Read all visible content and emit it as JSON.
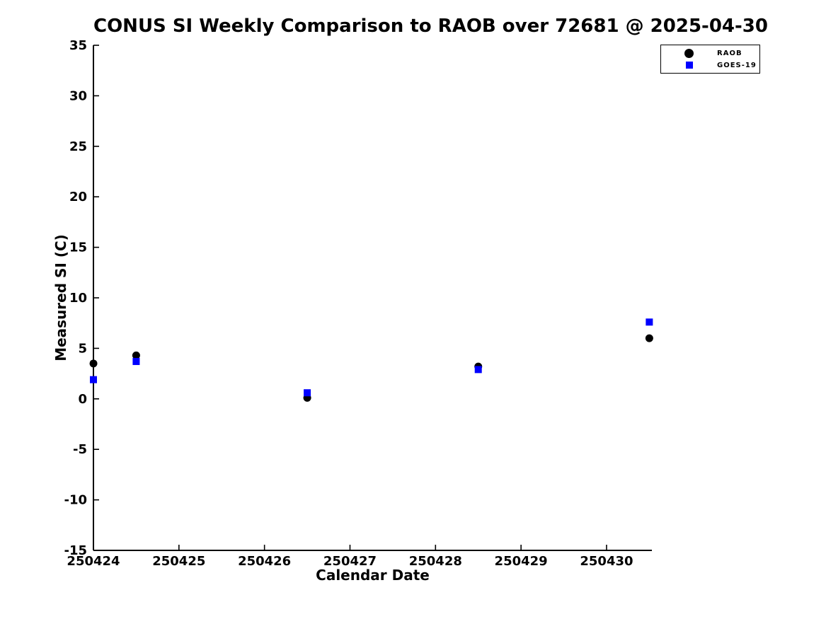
{
  "figure": {
    "background_color": "#ffffff",
    "text_color": "#000000"
  },
  "chart_data": {
    "type": "scatter",
    "title": "CONUS SI Weekly Comparison to RAOB over 72681 @ 2025-04-30",
    "xlabel": "Calendar Date",
    "ylabel": "Measured SI (C)",
    "xlim": [
      250424,
      250430.53
    ],
    "ylim": [
      -15,
      35
    ],
    "xticks": [
      250424,
      250425,
      250426,
      250427,
      250428,
      250429,
      250430
    ],
    "yticks": [
      -15,
      -10,
      -5,
      0,
      5,
      10,
      15,
      20,
      25,
      30,
      35
    ],
    "grid": false,
    "legend_position": "upper-right-outside",
    "series": [
      {
        "name": "RAOB",
        "marker": "circle",
        "color": "#000000",
        "x": [
          250424.0,
          250424.5,
          250426.5,
          250428.5,
          250430.5
        ],
        "y": [
          3.5,
          4.3,
          0.1,
          3.2,
          6.0
        ]
      },
      {
        "name": "GOES-19",
        "marker": "square",
        "color": "#0000ff",
        "x": [
          250424.0,
          250424.5,
          250426.5,
          250428.5,
          250430.5
        ],
        "y": [
          1.9,
          3.7,
          0.6,
          2.9,
          7.6
        ]
      }
    ]
  }
}
